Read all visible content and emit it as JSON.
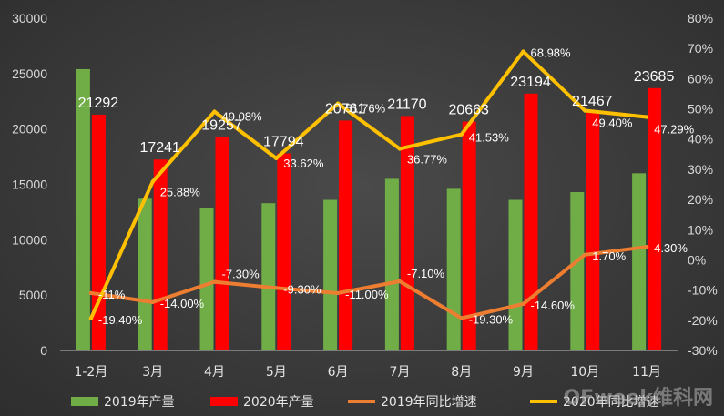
{
  "chart_data": {
    "type": "bar",
    "categories": [
      "1-2月",
      "3月",
      "4月",
      "5月",
      "6月",
      "7月",
      "8月",
      "9月",
      "10月",
      "11月"
    ],
    "bar_series": [
      {
        "name": "2019年产量",
        "color": "#70ad47",
        "values": [
          25400,
          13700,
          12900,
          13300,
          13600,
          15500,
          14600,
          13600,
          14300,
          16000
        ]
      },
      {
        "name": "2020年产量",
        "color": "#ff0000",
        "values": [
          21292,
          17241,
          19257,
          17794,
          20761,
          21170,
          20663,
          23194,
          21467,
          23685
        ],
        "labels": [
          "21292",
          "17241",
          "19257",
          "17794",
          "20761",
          "21170",
          "20663",
          "23194",
          "21467",
          "23685"
        ]
      }
    ],
    "line_series": [
      {
        "name": "2019年同比增速",
        "color": "#ed7d31",
        "values": [
          -11.0,
          -14.0,
          -7.3,
          -9.3,
          -11.0,
          -7.1,
          -19.3,
          -14.6,
          1.7,
          4.3
        ],
        "labels": [
          "-11%",
          "-14.00%",
          "-7.30%",
          "-9.30%",
          "-11.00%",
          "-7.10%",
          "-19.30%",
          "-14.60%",
          "1.70%",
          "4.30%"
        ]
      },
      {
        "name": "2020年同比增速",
        "color": "#ffc000",
        "values": [
          -19.4,
          25.88,
          49.08,
          33.62,
          51.76,
          36.77,
          41.53,
          68.98,
          49.4,
          47.29
        ],
        "labels": [
          "-19.40%",
          "25.88%",
          "49.08%",
          "33.62%",
          "51.76%",
          "36.77%",
          "41.53%",
          "68.98%",
          "49.40%",
          "47.29%"
        ]
      }
    ],
    "left_axis": {
      "min": 0,
      "max": 30000,
      "ticks": [
        "0",
        "5000",
        "10000",
        "15000",
        "20000",
        "25000",
        "30000"
      ]
    },
    "right_axis": {
      "min": -30,
      "max": 80,
      "ticks": [
        "-30%",
        "-20%",
        "-10%",
        "0%",
        "10%",
        "20%",
        "30%",
        "40%",
        "50%",
        "60%",
        "70%",
        "80%"
      ]
    },
    "legend": [
      "2019年产量",
      "2020年产量",
      "2019年同比增速",
      "2020年同比增速"
    ],
    "legend_position": "bottom",
    "grid": false
  },
  "watermark": "OFweek维科网"
}
